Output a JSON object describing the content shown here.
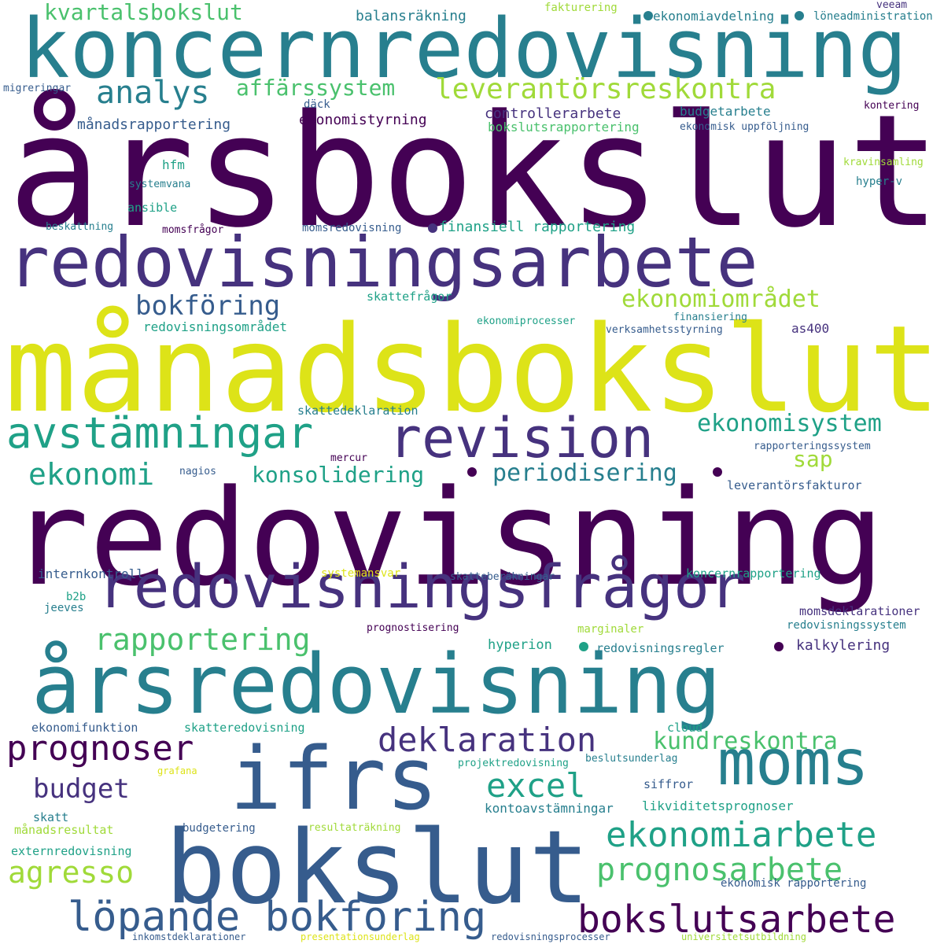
{
  "palette": {
    "purple": "#440154",
    "indigo": "#46327e",
    "blue": "#365c8d",
    "teal": "#277f8e",
    "green": "#1fa187",
    "lightgreen": "#4ac16d",
    "lime": "#a0da39",
    "yellow": "#dde318"
  },
  "words": [
    {
      "text": "årsbokslut",
      "color": "#440154"
    },
    {
      "text": "månadsbokslut",
      "color": "#dde318"
    },
    {
      "text": "redovisning",
      "color": "#440154"
    },
    {
      "text": "koncernredovisning",
      "color": "#277f8e"
    },
    {
      "text": "redovisningsarbete",
      "color": "#46327e"
    },
    {
      "text": "årsredovisning",
      "color": "#277f8e"
    },
    {
      "text": "redovisningsfrågor",
      "color": "#46327e"
    },
    {
      "text": "bokslut",
      "color": "#365c8d"
    },
    {
      "text": "ifrs",
      "color": "#365c8d"
    },
    {
      "text": "moms",
      "color": "#277f8e"
    },
    {
      "text": "revision",
      "color": "#46327e"
    },
    {
      "text": "avstämningar",
      "color": "#1fa187"
    },
    {
      "text": "löpande bokföring",
      "color": "#365c8d"
    },
    {
      "text": "bokslutsarbete",
      "color": "#440154"
    },
    {
      "text": "ekonomiarbete",
      "color": "#1fa187"
    },
    {
      "text": "prognosarbete",
      "color": "#4ac16d"
    },
    {
      "text": "deklaration",
      "color": "#46327e"
    },
    {
      "text": "prognoser",
      "color": "#440154"
    },
    {
      "text": "excel",
      "color": "#1fa187"
    },
    {
      "text": "agresso",
      "color": "#a0da39"
    },
    {
      "text": "budget",
      "color": "#46327e"
    },
    {
      "text": "kundreskontra",
      "color": "#4ac16d"
    },
    {
      "text": "rapportering",
      "color": "#4ac16d"
    },
    {
      "text": "ekonomi",
      "color": "#1fa187"
    },
    {
      "text": "konsolidering",
      "color": "#1fa187"
    },
    {
      "text": "periodisering",
      "color": "#277f8e"
    },
    {
      "text": "sap",
      "color": "#a0da39"
    },
    {
      "text": "ekonomisystem",
      "color": "#1fa187"
    },
    {
      "text": "bokföring",
      "color": "#365c8d"
    },
    {
      "text": "ekonomiområdet",
      "color": "#a0da39"
    },
    {
      "text": "leverantörsreskontra",
      "color": "#a0da39"
    },
    {
      "text": "analys",
      "color": "#277f8e"
    },
    {
      "text": "affärssystem",
      "color": "#4ac16d"
    },
    {
      "text": "kvartalsbokslut",
      "color": "#4ac16d"
    },
    {
      "text": "balansräkning",
      "color": "#277f8e"
    },
    {
      "text": "fakturering",
      "color": "#a0da39"
    },
    {
      "text": "ekonomiavdelning",
      "color": "#277f8e"
    },
    {
      "text": "löneadministration",
      "color": "#277f8e"
    },
    {
      "text": "veeam",
      "color": "#46327e"
    },
    {
      "text": "migreringar",
      "color": "#365c8d"
    },
    {
      "text": "däck",
      "color": "#365c8d"
    },
    {
      "text": "kontering",
      "color": "#440154"
    },
    {
      "text": "månadsrapportering",
      "color": "#365c8d"
    },
    {
      "text": "ekonomistyrning",
      "color": "#440154"
    },
    {
      "text": "controllerarbete",
      "color": "#46327e"
    },
    {
      "text": "bokslutsrapportering",
      "color": "#4ac16d"
    },
    {
      "text": "budgetarbete",
      "color": "#277f8e"
    },
    {
      "text": "ekonomisk uppföljning",
      "color": "#365c8d"
    },
    {
      "text": "hfm",
      "color": "#1fa187"
    },
    {
      "text": "kravinsamling",
      "color": "#a0da39"
    },
    {
      "text": "systemvana",
      "color": "#277f8e"
    },
    {
      "text": "hyper-v",
      "color": "#277f8e"
    },
    {
      "text": "ansible",
      "color": "#1fa187"
    },
    {
      "text": "beskattning",
      "color": "#277f8e"
    },
    {
      "text": "momsfrågor",
      "color": "#440154"
    },
    {
      "text": "momsredovisning",
      "color": "#365c8d"
    },
    {
      "text": "finansiell rapportering",
      "color": "#1fa187"
    },
    {
      "text": "skattefrågor",
      "color": "#1fa187"
    },
    {
      "text": "redovisningsområdet",
      "color": "#1fa187"
    },
    {
      "text": "ekonomiprocesser",
      "color": "#1fa187"
    },
    {
      "text": "finansiering",
      "color": "#277f8e"
    },
    {
      "text": "verksamhetsstyrning",
      "color": "#365c8d"
    },
    {
      "text": "as400",
      "color": "#46327e"
    },
    {
      "text": "skattedeklaration",
      "color": "#277f8e"
    },
    {
      "text": "mercur",
      "color": "#440154"
    },
    {
      "text": "rapporteringssystem",
      "color": "#365c8d"
    },
    {
      "text": "nagios",
      "color": "#365c8d"
    },
    {
      "text": "leverantörsfakturor",
      "color": "#365c8d"
    },
    {
      "text": "internkontroll",
      "color": "#365c8d"
    },
    {
      "text": "systemansvar",
      "color": "#dde318"
    },
    {
      "text": "skatteberäkningar",
      "color": "#365c8d"
    },
    {
      "text": "koncernrapportering",
      "color": "#1fa187"
    },
    {
      "text": "b2b",
      "color": "#1fa187"
    },
    {
      "text": "jeeves",
      "color": "#277f8e"
    },
    {
      "text": "momsdeklarationer",
      "color": "#46327e"
    },
    {
      "text": "prognostisering",
      "color": "#440154"
    },
    {
      "text": "marginaler",
      "color": "#a0da39"
    },
    {
      "text": "redovisningssystem",
      "color": "#277f8e"
    },
    {
      "text": "hyperion",
      "color": "#1fa187"
    },
    {
      "text": "redovisningsregler",
      "color": "#277f8e"
    },
    {
      "text": "kalkylering",
      "color": "#46327e"
    },
    {
      "text": "ekonomifunktion",
      "color": "#365c8d"
    },
    {
      "text": "skatteredovisning",
      "color": "#1fa187"
    },
    {
      "text": "cloud",
      "color": "#1fa187"
    },
    {
      "text": "projektredovisning",
      "color": "#1fa187"
    },
    {
      "text": "beslutsunderlag",
      "color": "#277f8e"
    },
    {
      "text": "grafana",
      "color": "#dde318"
    },
    {
      "text": "siffror",
      "color": "#365c8d"
    },
    {
      "text": "kontoavstämningar",
      "color": "#277f8e"
    },
    {
      "text": "likviditetsprognoser",
      "color": "#1fa187"
    },
    {
      "text": "skatt",
      "color": "#277f8e"
    },
    {
      "text": "månadsresultat",
      "color": "#a0da39"
    },
    {
      "text": "budgetering",
      "color": "#365c8d"
    },
    {
      "text": "resultaträkning",
      "color": "#a0da39"
    },
    {
      "text": "externredovisning",
      "color": "#1fa187"
    },
    {
      "text": "ekonomisk rapportering",
      "color": "#365c8d"
    },
    {
      "text": "inkomstdeklarationer",
      "color": "#365c8d"
    },
    {
      "text": "presentationsunderlag",
      "color": "#dde318"
    },
    {
      "text": "redovisningsprocesser",
      "color": "#365c8d"
    },
    {
      "text": "universitetsutbildning",
      "color": "#a0da39"
    }
  ]
}
